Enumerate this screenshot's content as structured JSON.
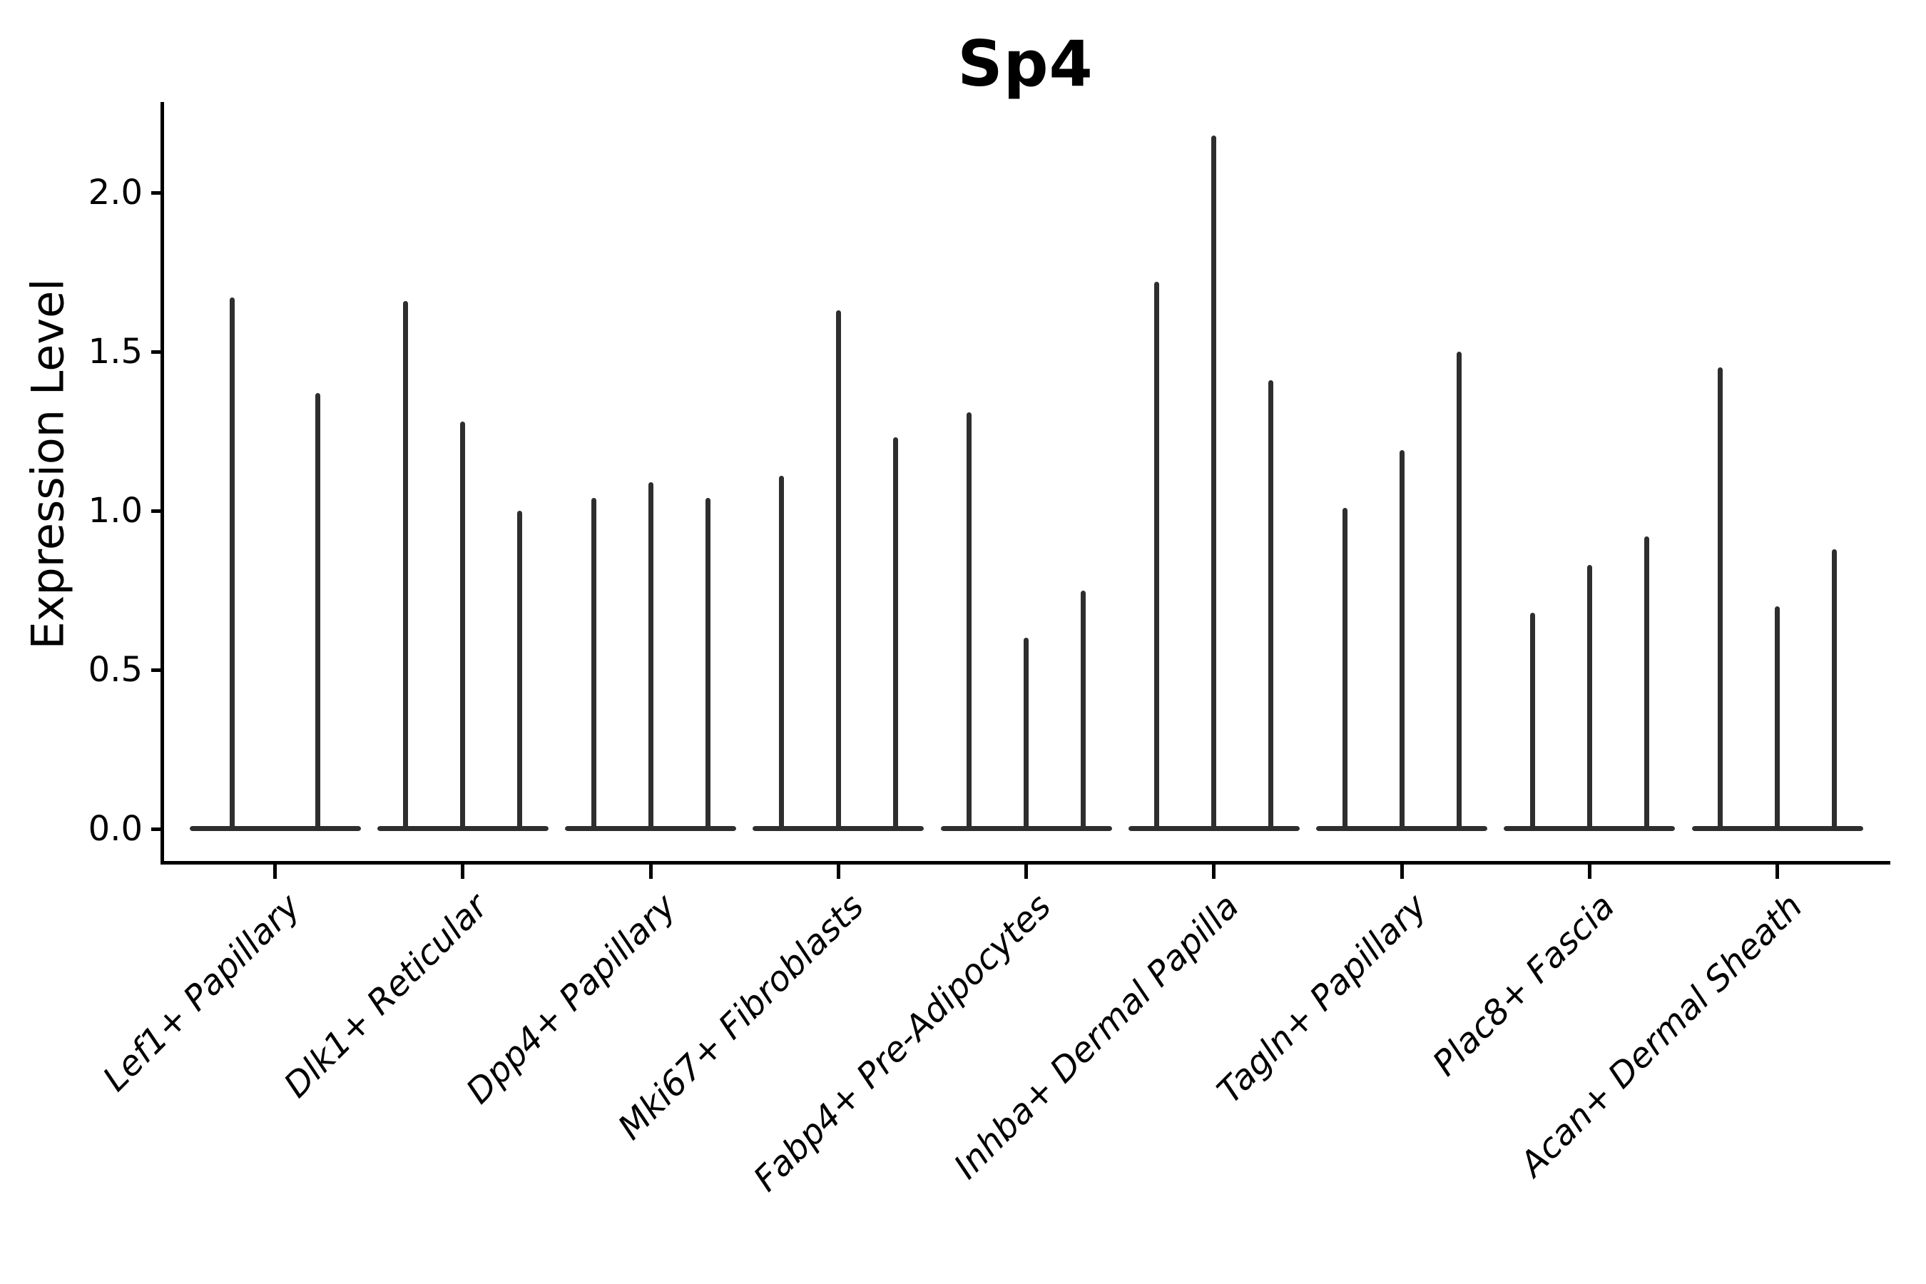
{
  "chart_data": {
    "type": "violin",
    "title": "Sp4",
    "ylabel": "Expression Level",
    "xlabel": "",
    "ylim": [
      0,
      2.3
    ],
    "yticks": [
      0.0,
      0.5,
      1.0,
      1.5,
      2.0
    ],
    "ytick_labels": [
      "0.0",
      "0.5",
      "1.0",
      "1.5",
      "2.0"
    ],
    "grid": "off",
    "legend": "none",
    "violin_color": "#2e2e2e",
    "axis_color": "#000000",
    "baseline_value": 0.0,
    "categories": [
      "Lef1+ Papillary",
      "Dlk1+ Reticular",
      "Dpp4+ Papillary",
      "Mki67+ Fibroblasts",
      "Fabp4+ Pre-Adipocytes",
      "Inhba+ Dermal Papilla",
      "Tagln+ Papillary",
      "Plac8+ Fascia",
      "Acan+ Dermal Sheath"
    ],
    "series": [
      {
        "category": "Lef1+ Papillary",
        "violin_max_values": [
          1.67,
          1.37
        ]
      },
      {
        "category": "Dlk1+ Reticular",
        "violin_max_values": [
          1.66,
          1.28,
          1.0
        ]
      },
      {
        "category": "Dpp4+ Papillary",
        "violin_max_values": [
          1.04,
          1.09,
          1.04
        ]
      },
      {
        "category": "Mki67+ Fibroblasts",
        "violin_max_values": [
          1.11,
          1.63,
          1.23
        ]
      },
      {
        "category": "Fabp4+ Pre-Adipocytes",
        "violin_max_values": [
          1.31,
          0.6,
          0.75
        ]
      },
      {
        "category": "Inhba+ Dermal Papilla",
        "violin_max_values": [
          1.72,
          2.18,
          1.41
        ]
      },
      {
        "category": "Tagln+ Papillary",
        "violin_max_values": [
          1.01,
          1.19,
          1.5
        ]
      },
      {
        "category": "Plac8+ Fascia",
        "violin_max_values": [
          0.68,
          0.83,
          0.92
        ]
      },
      {
        "category": "Acan+ Dermal Sheath",
        "violin_max_values": [
          1.45,
          0.7,
          0.88
        ]
      }
    ]
  }
}
